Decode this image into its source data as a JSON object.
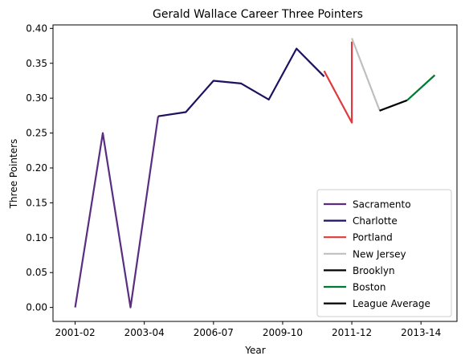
{
  "chart_data": {
    "type": "line",
    "title": "Gerald Wallace Career Three Pointers",
    "xlabel": "Year",
    "ylabel": "Three Pointers",
    "x_tick_labels": [
      "2001-02",
      "2003-04",
      "2006-07",
      "2009-10",
      "2011-12",
      "2013-14"
    ],
    "x_tick_positions": [
      0,
      2.5,
      5,
      7.5,
      10,
      12.5
    ],
    "xlim": [
      -0.8,
      13.8
    ],
    "ylim": [
      -0.02,
      0.405
    ],
    "y_ticks": [
      0.0,
      0.05,
      0.1,
      0.15,
      0.2,
      0.25,
      0.3,
      0.35,
      0.4
    ],
    "y_tick_labels": [
      "0.00",
      "0.05",
      "0.10",
      "0.15",
      "0.20",
      "0.25",
      "0.30",
      "0.35",
      "0.40"
    ],
    "grid": false,
    "legend_placement": "lower right",
    "series": [
      {
        "name": "Sacramento",
        "color": "#5a2d81",
        "x": [
          0,
          1,
          2,
          3
        ],
        "y": [
          0.0,
          0.25,
          0.0,
          0.274
        ]
      },
      {
        "name": "Charlotte",
        "color": "#1d1160",
        "x": [
          3,
          4,
          5,
          6,
          7,
          8,
          9
        ],
        "y": [
          0.274,
          0.28,
          0.325,
          0.321,
          0.298,
          0.371,
          0.331
        ]
      },
      {
        "name": "Portland",
        "color": "#e03a3e",
        "x": [
          9,
          10,
          10
        ],
        "y": [
          0.339,
          0.265,
          0.381
        ]
      },
      {
        "name": "New Jersey",
        "color": "#bfbfbf",
        "x": [
          10,
          11
        ],
        "y": [
          0.386,
          0.283
        ]
      },
      {
        "name": "Brooklyn",
        "color": "#000000",
        "x": [
          11,
          12
        ],
        "y": [
          0.282,
          0.297
        ]
      },
      {
        "name": "Boston",
        "color": "#007a33",
        "x": [
          12,
          13
        ],
        "y": [
          0.297,
          0.333
        ]
      },
      {
        "name": "League Average",
        "color": "#000000",
        "x": [],
        "y": []
      }
    ]
  }
}
